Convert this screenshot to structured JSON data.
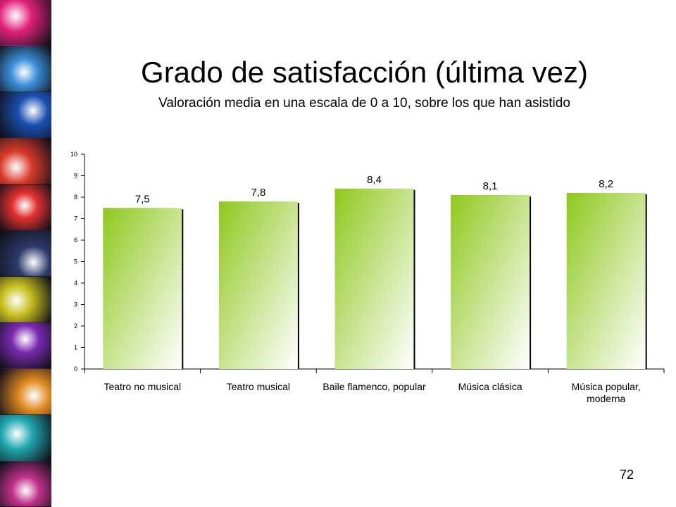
{
  "slide": {
    "title": "Grado de satisfacción (última vez)",
    "subtitle": "Valoración media en una escala de 0 a 10, sobre los que han asistido",
    "page_number": "72"
  },
  "decor": {
    "strip_colors": [
      "#e0207a",
      "#3a8fd8",
      "#1a4fb0",
      "#d83a2a",
      "#e23030",
      "#2c3a6a",
      "#c8c020",
      "#7a2ab0",
      "#e08a20",
      "#20a8b0",
      "#c0308a"
    ]
  },
  "colors": {
    "bar_top": "#8fc81e",
    "bar_bottom": "#ffffff",
    "bar_shadow": "#000000",
    "axis": "#000000"
  },
  "chart_data": {
    "type": "bar",
    "categories": [
      "Teatro no musical",
      "Teatro musical",
      "Baile flamenco, popular",
      "Música clásica",
      "Música popular, moderna"
    ],
    "values": [
      7.5,
      7.8,
      8.4,
      8.1,
      8.2
    ],
    "value_labels": [
      "7,5",
      "7,8",
      "8,4",
      "8,1",
      "8,2"
    ],
    "y_ticks": [
      "0",
      "1",
      "2",
      "3",
      "4",
      "5",
      "6",
      "7",
      "8",
      "9",
      "10"
    ],
    "ylim": [
      0,
      10
    ],
    "grid": false,
    "legend": "none"
  }
}
